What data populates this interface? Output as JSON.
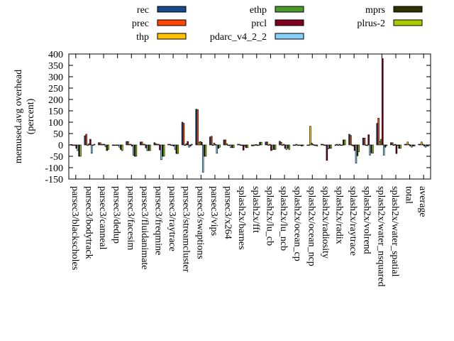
{
  "chart_data": {
    "type": "bar",
    "ylabel": "memused.avg overhead (percent)",
    "ylim": [
      -150,
      400
    ],
    "yticks": [
      -150,
      -100,
      -50,
      0,
      50,
      100,
      150,
      200,
      250,
      300,
      350,
      400
    ],
    "grid": false,
    "legend_placement": "top",
    "categories": [
      "parsec3/blackscholes",
      "parsec3/bodytrack",
      "parsec3/canneal",
      "parsec3/dedup",
      "parsec3/facesim",
      "parsec3/fluidanimate",
      "parsec3/freqmine",
      "parsec3/raytrace",
      "parsec3/streamcluster",
      "parsec3/swaptions",
      "parsec3/vips",
      "parsec3/x264",
      "splash2x/barnes",
      "splash2x/fft",
      "splash2x/lu_cb",
      "splash2x/lu_ncb",
      "splash2x/ocean_cp",
      "splash2x/ocean_ncp",
      "splash2x/radiosity",
      "splash2x/radix",
      "splash2x/raytrace",
      "splash2x/volrend",
      "splash2x/water_nsquared",
      "splash2x/water_spatial",
      "total",
      "average"
    ],
    "series": [
      {
        "name": "rec",
        "color": "#1a4a8a",
        "values": [
          2,
          40,
          10,
          0,
          15,
          13,
          10,
          3,
          100,
          157,
          35,
          22,
          3,
          -4,
          13,
          16,
          0,
          0,
          3,
          0,
          47,
          30,
          95,
          10,
          3,
          3
        ]
      },
      {
        "name": "prec",
        "color": "#ff4500",
        "values": [
          0,
          47,
          10,
          0,
          15,
          13,
          5,
          3,
          95,
          155,
          38,
          22,
          3,
          -4,
          13,
          12,
          0,
          0,
          3,
          3,
          42,
          30,
          118,
          10,
          3,
          3
        ]
      },
      {
        "name": "thp",
        "color": "#ffc200",
        "values": [
          0,
          0,
          3,
          0,
          3,
          3,
          3,
          0,
          0,
          12,
          0,
          5,
          0,
          0,
          0,
          0,
          3,
          82,
          0,
          0,
          0,
          0,
          15,
          0,
          13,
          13
        ]
      },
      {
        "name": "ethp",
        "color": "#4c9a2a",
        "values": [
          0,
          5,
          3,
          0,
          3,
          3,
          3,
          0,
          5,
          15,
          8,
          0,
          0,
          2,
          3,
          3,
          0,
          8,
          0,
          3,
          -5,
          -3,
          25,
          3,
          3,
          3
        ]
      },
      {
        "name": "prcl",
        "color": "#800020",
        "values": [
          -15,
          25,
          3,
          0,
          -5,
          -13,
          -22,
          -5,
          15,
          12,
          2,
          0,
          -23,
          0,
          -25,
          -15,
          0,
          3,
          -68,
          0,
          -25,
          45,
          380,
          -38,
          -5,
          -5
        ]
      },
      {
        "name": "pdarc_v4_2_2",
        "color": "#87cefa",
        "values": [
          -25,
          -37,
          -8,
          -10,
          -45,
          -25,
          -65,
          -20,
          -10,
          -120,
          -37,
          -12,
          -5,
          0,
          -20,
          -20,
          0,
          0,
          -18,
          0,
          -80,
          -45,
          -45,
          0,
          -10,
          -10
        ]
      },
      {
        "name": "mprs",
        "color": "#2f3300",
        "values": [
          -50,
          0,
          -25,
          -20,
          -50,
          -25,
          -50,
          -38,
          -5,
          -50,
          -15,
          -12,
          -12,
          12,
          -20,
          -15,
          -5,
          -3,
          -15,
          22,
          -48,
          -35,
          -10,
          -15,
          -5,
          -5
        ]
      },
      {
        "name": "plrus-2",
        "color": "#a8cc00",
        "values": [
          -50,
          3,
          -20,
          -25,
          -50,
          -25,
          -50,
          -38,
          3,
          -50,
          -10,
          -12,
          -12,
          12,
          -20,
          -20,
          -3,
          -5,
          -15,
          22,
          -30,
          -37,
          -3,
          -15,
          -5,
          -5
        ]
      }
    ]
  }
}
